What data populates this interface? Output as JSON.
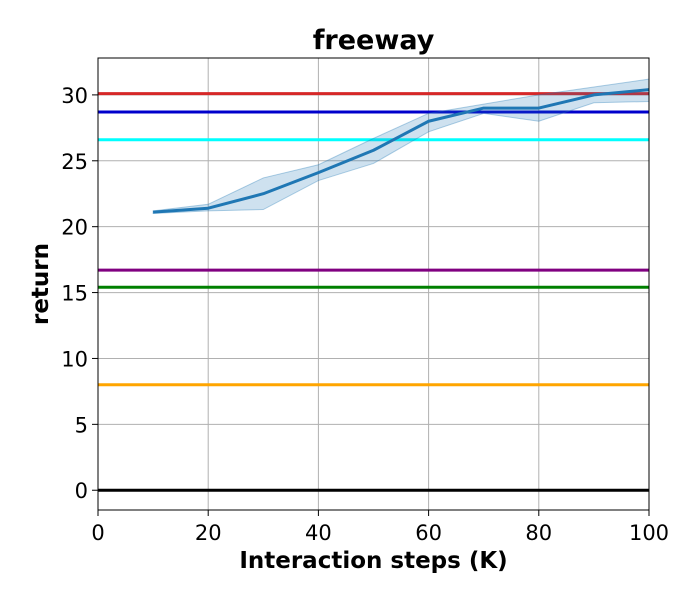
{
  "chart_data": {
    "type": "line",
    "title": "freeway",
    "xlabel": "Interaction steps (K)",
    "ylabel": "return",
    "xlim": [
      0,
      100
    ],
    "ylim": [
      -1.5,
      32.8
    ],
    "xticks": [
      0,
      20,
      40,
      60,
      80,
      100
    ],
    "yticks": [
      0,
      5,
      10,
      15,
      20,
      25,
      30
    ],
    "grid": true,
    "series": [
      {
        "color": "#1f77b4",
        "x": [
          10,
          20,
          30,
          40,
          50,
          60,
          70,
          80,
          90,
          100
        ],
        "y": [
          21.1,
          21.4,
          22.5,
          24.1,
          25.8,
          28.0,
          29.0,
          29.0,
          30.0,
          30.4
        ],
        "band_low": [
          21.0,
          21.2,
          21.3,
          23.5,
          24.8,
          27.2,
          28.6,
          28.0,
          29.4,
          29.5
        ],
        "band_high": [
          21.2,
          21.7,
          23.7,
          24.7,
          26.7,
          28.6,
          29.3,
          30.0,
          30.6,
          31.2
        ]
      }
    ],
    "hlines": [
      {
        "y": 30.1,
        "color": "#d62728"
      },
      {
        "y": 28.7,
        "color": "#0000cc"
      },
      {
        "y": 26.6,
        "color": "#00ffff"
      },
      {
        "y": 16.7,
        "color": "#800080"
      },
      {
        "y": 15.4,
        "color": "#008000"
      },
      {
        "y": 8.0,
        "color": "#ffa500"
      },
      {
        "y": 0.0,
        "color": "#000000"
      }
    ]
  }
}
